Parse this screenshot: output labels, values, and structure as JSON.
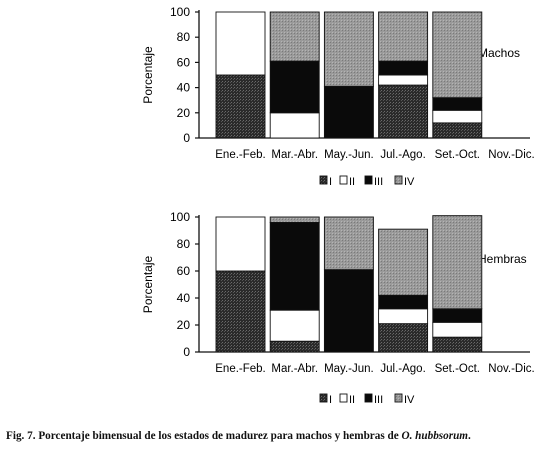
{
  "legend_items": [
    {
      "label": "I",
      "color": "#3a3a3a"
    },
    {
      "label": "II",
      "color": "#ffffff"
    },
    {
      "label": "III",
      "color": "#0a0a0a"
    },
    {
      "label": "IV",
      "color": "#9a9a9a"
    }
  ],
  "chart_data": [
    {
      "type": "bar",
      "stacked": true,
      "panel_label": "Machos",
      "ylabel": "Porcentaje",
      "ylim": [
        0,
        100
      ],
      "yticks": [
        0,
        20,
        40,
        60,
        80,
        100
      ],
      "grid": false,
      "categories": [
        "Ene.-Feb.",
        "Mar.-Abr.",
        "May.-Jun.",
        "Jul.-Ago.",
        "Set.-Oct.",
        "Nov.-Dic."
      ],
      "series": [
        {
          "name": "I",
          "values": [
            50,
            0,
            0,
            42,
            12,
            0
          ]
        },
        {
          "name": "II",
          "values": [
            50,
            20,
            0,
            8,
            10,
            0
          ]
        },
        {
          "name": "III",
          "values": [
            0,
            41,
            41,
            11,
            10,
            0
          ]
        },
        {
          "name": "IV",
          "values": [
            0,
            39,
            59,
            39,
            68,
            0
          ]
        }
      ]
    },
    {
      "type": "bar",
      "stacked": true,
      "panel_label": "Hembras",
      "ylabel": "Porcentaje",
      "ylim": [
        0,
        100
      ],
      "yticks": [
        0,
        20,
        40,
        60,
        80,
        100
      ],
      "grid": false,
      "categories": [
        "Ene.-Feb.",
        "Mar.-Abr.",
        "May.-Jun.",
        "Jul.-Ago.",
        "Set.-Oct.",
        "Nov.-Dic."
      ],
      "series": [
        {
          "name": "I",
          "values": [
            60,
            8,
            0,
            21,
            11,
            0
          ]
        },
        {
          "name": "II",
          "values": [
            40,
            23,
            0,
            11,
            11,
            0
          ]
        },
        {
          "name": "III",
          "values": [
            0,
            65,
            61,
            10,
            10,
            0
          ]
        },
        {
          "name": "IV",
          "values": [
            0,
            4,
            39,
            49,
            69,
            0
          ]
        }
      ]
    }
  ],
  "caption": {
    "prefix": "Fig. 7. Porcentaje bimensual de los estados de madurez para machos y hembras de ",
    "species": "O. hubbsorum",
    "suffix": "."
  }
}
